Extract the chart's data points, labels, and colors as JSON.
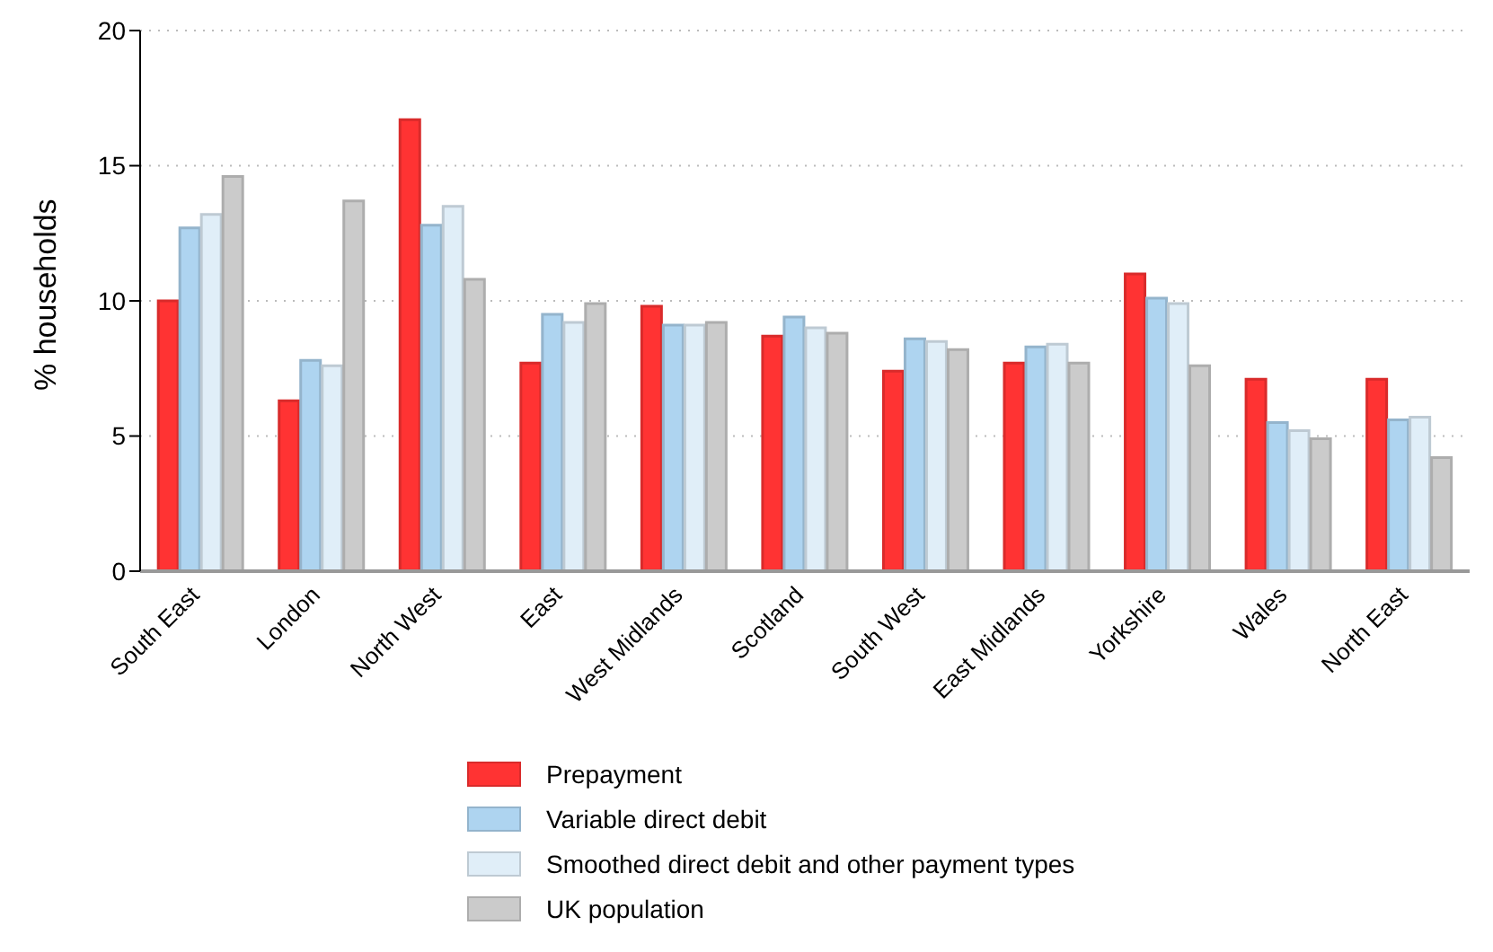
{
  "chart_data": {
    "type": "bar",
    "ylabel": "% households",
    "categories": [
      "South East",
      "London",
      "North West",
      "East",
      "West Midlands",
      "Scotland",
      "South West",
      "East Midlands",
      "Yorkshire",
      "Wales",
      "North East"
    ],
    "series": [
      {
        "name": "Prepayment",
        "color": "#ff3333",
        "values": [
          10.0,
          6.3,
          16.7,
          7.7,
          9.8,
          8.7,
          7.4,
          7.7,
          11.0,
          7.1,
          7.1
        ]
      },
      {
        "name": "Variable direct debit",
        "color": "#aed4f0",
        "values": [
          12.7,
          7.8,
          12.8,
          9.5,
          9.1,
          9.4,
          8.6,
          8.3,
          10.1,
          5.5,
          5.6
        ]
      },
      {
        "name": "Smoothed direct debit and other payment types",
        "color": "#e0eef8",
        "values": [
          13.2,
          7.6,
          13.5,
          9.2,
          9.1,
          9.0,
          8.5,
          8.4,
          9.9,
          5.2,
          5.7
        ]
      },
      {
        "name": "UK population",
        "color": "#cbcbcb",
        "values": [
          14.6,
          13.7,
          10.8,
          9.9,
          9.2,
          8.8,
          8.2,
          7.7,
          7.6,
          4.9,
          4.2
        ]
      }
    ],
    "ylim": [
      0,
      20
    ],
    "yticks": [
      0,
      5,
      10,
      15,
      20
    ],
    "grid": "y",
    "legend": "bottom"
  }
}
